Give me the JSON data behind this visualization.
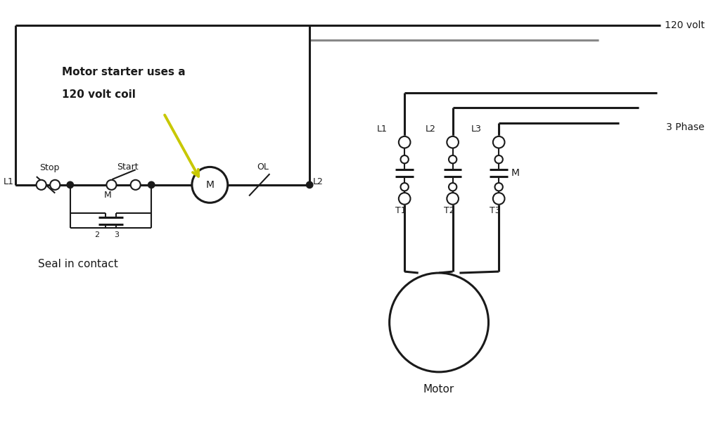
{
  "bg_color": "#ffffff",
  "lc": "#1a1a1a",
  "gc": "#888888",
  "yc": "#c8c800",
  "label_120volt": "120 volt",
  "label_3phase": "3 Phase",
  "label_L1_left": "L1",
  "label_L2_left": "L2",
  "label_Stop": "Stop",
  "label_Start": "Start",
  "label_OL": "OL",
  "label_M_coil": "M",
  "label_M_contact": "M",
  "label_2": "2",
  "label_3": "3",
  "label_seal": "Seal in contact",
  "label_L1": "L1",
  "label_L2": "L2",
  "label_L3": "L3",
  "label_T1": "T1",
  "label_T2": "T2",
  "label_T3": "T3",
  "label_M_right": "M",
  "label_Motor": "Motor",
  "ann_line1": "Motor starter uses a",
  "ann_line2": "120 volt coil"
}
